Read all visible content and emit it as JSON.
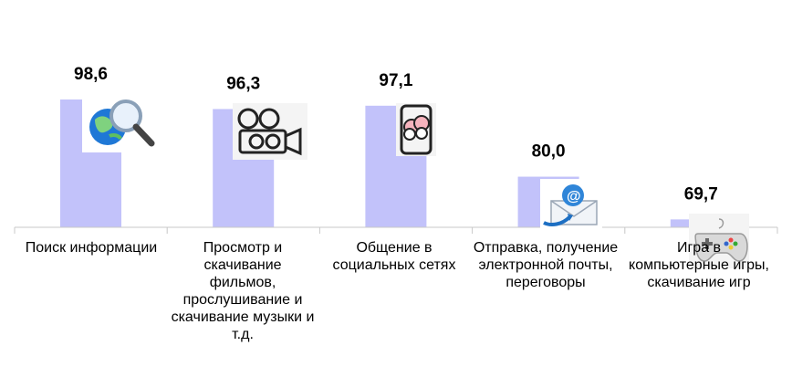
{
  "chart_data": {
    "type": "bar",
    "categories": [
      "Поиск информации",
      "Просмотр и скачивание фильмов, прослушивание и скачивание музыки и т.д.",
      "Общение в социальных сетях",
      "Отправка, получение электронной почты, переговоры",
      "Игра в компьютерные игры, скачивание игр"
    ],
    "values": [
      98.6,
      96.3,
      97.1,
      80.0,
      69.7
    ],
    "value_labels": [
      "98,6",
      "96,3",
      "97,1",
      "80,0",
      "69,7"
    ],
    "icons": [
      "globe-search-icon",
      "film-projector-icon",
      "social-chat-phone-icon",
      "email-envelope-icon",
      "gamepad-icon"
    ],
    "bar_color": "#C2C2FA",
    "ylim": [
      0,
      100
    ],
    "grid": false,
    "legend": "none"
  }
}
